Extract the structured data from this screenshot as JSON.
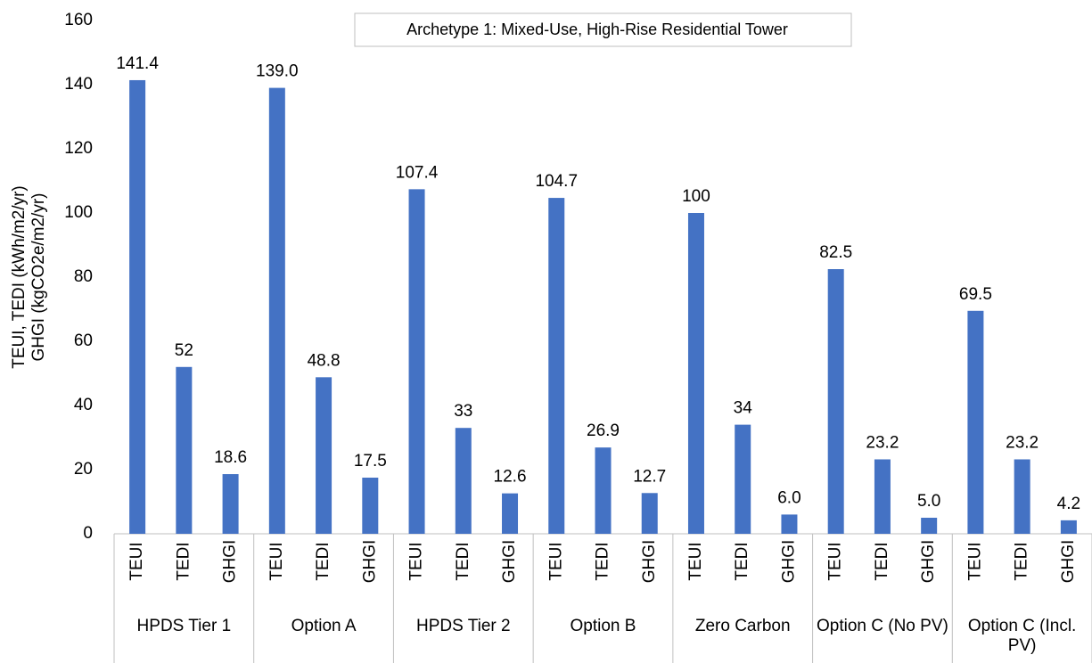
{
  "chart_data": {
    "type": "bar",
    "title": "Archetype 1: Mixed-Use, High-Rise Residential Tower",
    "ylabel": [
      "TEUI, TEDI (kWh/m2/yr)",
      "GHGI (kgCO2e/m2/yr)"
    ],
    "groups": [
      "HPDS Tier 1",
      "Option A",
      "HPDS Tier 2",
      "Option B",
      "Zero Carbon",
      "Option C (No PV)",
      "Option C (Incl. PV)"
    ],
    "categories": [
      "TEUI",
      "TEDI",
      "GHGI",
      "TEUI",
      "TEDI",
      "GHGI",
      "TEUI",
      "TEDI",
      "GHGI",
      "TEUI",
      "TEDI",
      "GHGI",
      "TEUI",
      "TEDI",
      "GHGI",
      "TEUI",
      "TEDI",
      "GHGI",
      "TEUI",
      "TEDI",
      "GHGI"
    ],
    "values": [
      141.4,
      52,
      18.6,
      139.0,
      48.8,
      17.5,
      107.4,
      33,
      12.6,
      104.7,
      26.9,
      12.7,
      100,
      34,
      6.0,
      82.5,
      23.2,
      5.0,
      69.5,
      23.2,
      4.2
    ],
    "value_labels": [
      "141.4",
      "52",
      "18.6",
      "139.0",
      "48.8",
      "17.5",
      "107.4",
      "33",
      "12.6",
      "104.7",
      "26.9",
      "12.7",
      "100",
      "34",
      "6.0",
      "82.5",
      "23.2",
      "5.0",
      "69.5",
      "23.2",
      "4.2"
    ],
    "color": "#4472c4",
    "ylim": [
      0,
      160
    ],
    "yticks": [
      0,
      20,
      40,
      60,
      80,
      100,
      120,
      140,
      160
    ],
    "grid": false
  }
}
